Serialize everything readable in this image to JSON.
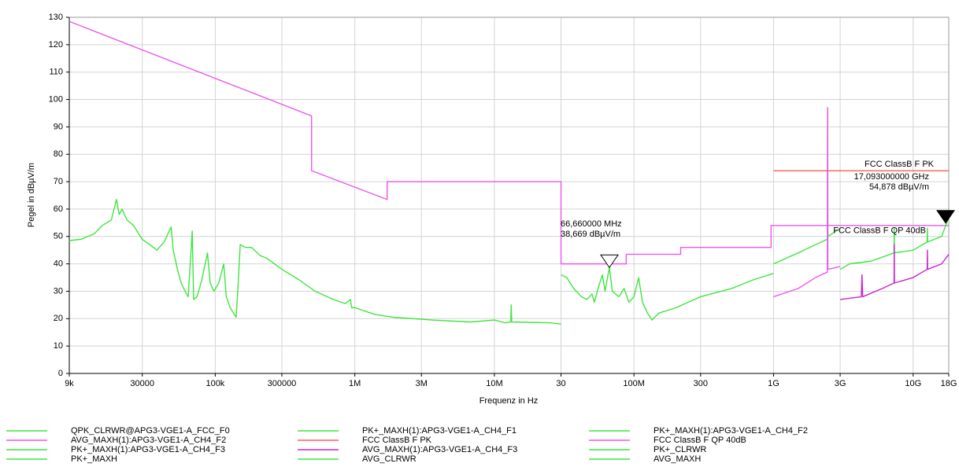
{
  "chart_data": {
    "type": "line",
    "xscale": "log",
    "grid": true,
    "x_label": "Frequenz in Hz",
    "y_label": "Pegel in dBµV/m",
    "xlim": [
      9000,
      18000000000
    ],
    "ylim": [
      0,
      130
    ],
    "xticks": [
      {
        "value": 9000,
        "label": "9k"
      },
      30000,
      {
        "value": 100000,
        "label": "100k"
      },
      300000,
      {
        "value": 1000000,
        "label": "1M"
      },
      {
        "value": 3000000,
        "label": "3M"
      },
      {
        "value": 10000000,
        "label": "10M"
      },
      {
        "value": 30000000,
        "label": "30"
      },
      {
        "value": 100000000,
        "label": "100M"
      },
      {
        "value": 300000000,
        "label": "300"
      },
      {
        "value": 1000000000,
        "label": "1G"
      },
      {
        "value": 3000000000,
        "label": "3G"
      },
      {
        "value": 10000000000,
        "label": "10G"
      },
      {
        "value": 18000000000,
        "label": "18G"
      }
    ],
    "yticks": [
      0,
      10,
      20,
      30,
      40,
      50,
      60,
      70,
      80,
      90,
      100,
      110,
      120,
      130
    ],
    "series": [
      {
        "name": "QPK_CLRWR@APG3-VGE1-A_FCC_F0",
        "color": "#3ee63e",
        "x": [
          9000,
          11000,
          13600,
          15500,
          18000,
          19600,
          20500,
          21500,
          23300,
          26000,
          29900,
          34000,
          38200,
          43000,
          48300,
          50000,
          53600,
          57000,
          60800,
          64000,
          68400,
          70000,
          74000,
          80000,
          88000,
          92000,
          98000,
          106000,
          115000,
          120000,
          128000,
          141000,
          145000,
          151000,
          165000,
          182000,
          210000,
          235000,
          300000,
          403000,
          520000,
          666000,
          850000,
          930000,
          950000,
          1000000,
          1400000,
          1900000,
          3600000,
          6750000,
          10000000,
          12000000,
          13100000,
          13200000,
          13300000,
          25000000,
          30000000
        ],
        "values": [
          48.5,
          49,
          51,
          54,
          56,
          63.5,
          58,
          60,
          56,
          54,
          49,
          47,
          45,
          48,
          53.5,
          45,
          38,
          33,
          30,
          28,
          52,
          27,
          28,
          34,
          44,
          33,
          30,
          33,
          40,
          28,
          24,
          20.5,
          30,
          47,
          46,
          46,
          43,
          42,
          38,
          34,
          30,
          27.5,
          25.5,
          27,
          24,
          24,
          21.5,
          20.5,
          19.5,
          18.8,
          19.5,
          18.5,
          18.8,
          25,
          18.8,
          18.5,
          18
        ]
      },
      {
        "name": "PK+_MAXH(1):APG3-VGE1-A_CH4_F1",
        "color": "#3ee63e",
        "x": [
          30000000,
          33000000,
          37000000,
          42000000,
          46000000,
          50000000,
          52000000,
          56000000,
          59400000,
          62000000,
          66660000,
          70000000,
          78000000,
          85000000,
          92000000,
          100000000,
          108000000,
          115000000,
          125000000,
          135000000,
          150000000,
          200000000,
          300000000,
          500000000,
          700000000,
          1000000000
        ],
        "values": [
          36,
          35,
          31,
          28,
          27,
          29,
          26,
          32,
          36,
          30,
          38.7,
          30,
          28,
          31,
          26,
          28,
          35,
          26,
          22,
          19.5,
          22,
          24,
          28,
          31,
          34,
          36.5
        ]
      },
      {
        "name": "PK+_MAXH(1):APG3-VGE1-A_CH4_F2",
        "color": "#3ee63e",
        "x": [
          1000000000,
          1500000000,
          2000000000,
          2430000000,
          2440000000,
          2450000000,
          3000000000
        ],
        "values": [
          40,
          44,
          47,
          49,
          97,
          50,
          53
        ]
      },
      {
        "name": "AVG_MAXH(1):APG3-VGE1-A_CH4_F2",
        "color": "#ee55ee",
        "x": [
          1000000000,
          1500000000,
          2000000000,
          2430000000,
          2440000000,
          2450000000,
          3000000000
        ],
        "values": [
          28,
          31,
          35,
          37,
          97,
          38,
          39
        ]
      },
      {
        "name": "FCC ClassB F PK",
        "color": "#ff5a5a",
        "x": [
          1000000000,
          18000000000
        ],
        "values": [
          74,
          74
        ]
      },
      {
        "name": "FCC ClassB F QP 40dB",
        "color": "#ee55ee",
        "x": [
          9000,
          490000,
          490000,
          1705000,
          1705000,
          30000000,
          30000000,
          88000000,
          88000000,
          216000000,
          216000000,
          960000000,
          960000000,
          18000000000
        ],
        "values": [
          128.5,
          94,
          74,
          63.5,
          70,
          70,
          40,
          40,
          43.5,
          43.5,
          46,
          46,
          54,
          54
        ]
      },
      {
        "name": "PK+_MAXH(1):APG3-VGE1-A_CH4_F3",
        "color": "#3ee63e",
        "x": [
          3000000000,
          3500000000,
          5000000000,
          7300000000,
          7320000000,
          7350000000,
          10000000000,
          12600000000,
          12650000000,
          12700000000,
          16000000000,
          18000000000
        ],
        "values": [
          38,
          40,
          41,
          44,
          53,
          44,
          45,
          48,
          53,
          48,
          50,
          57
        ]
      },
      {
        "name": "AVG_MAXH(1):APG3-VGE1-A_CH4_F3",
        "color": "#cc22cc",
        "x": [
          3000000000,
          4250000000,
          4300000000,
          4350000000,
          6000000000,
          7300000000,
          7320000000,
          7350000000,
          10000000000,
          12600000000,
          12650000000,
          12700000000,
          16000000000,
          18000000000
        ],
        "values": [
          27,
          28,
          36,
          28,
          31,
          33,
          47,
          33,
          35,
          38,
          45,
          38,
          40,
          43.5
        ]
      },
      {
        "name": "PK+_CLRWR",
        "color": "#3ee63e",
        "x": [],
        "values": []
      },
      {
        "name": "PK+_MAXH",
        "color": "#3ee63e",
        "x": [],
        "values": []
      },
      {
        "name": "AVG_CLRWR",
        "color": "#3ee63e",
        "x": [],
        "values": []
      },
      {
        "name": "AVG_MAXH",
        "color": "#3ee63e",
        "x": [],
        "values": []
      }
    ],
    "markers": [
      {
        "x": 66660000,
        "value": 38.669,
        "x_label": "66,660000 MHz",
        "value_label": "38,669 dBµV/m",
        "filled": false
      },
      {
        "x": 17093000000,
        "value": 54.878,
        "x_label": "17,093000000 GHz",
        "value_label": "54,878 dBµV/m",
        "filled": true
      }
    ]
  }
}
